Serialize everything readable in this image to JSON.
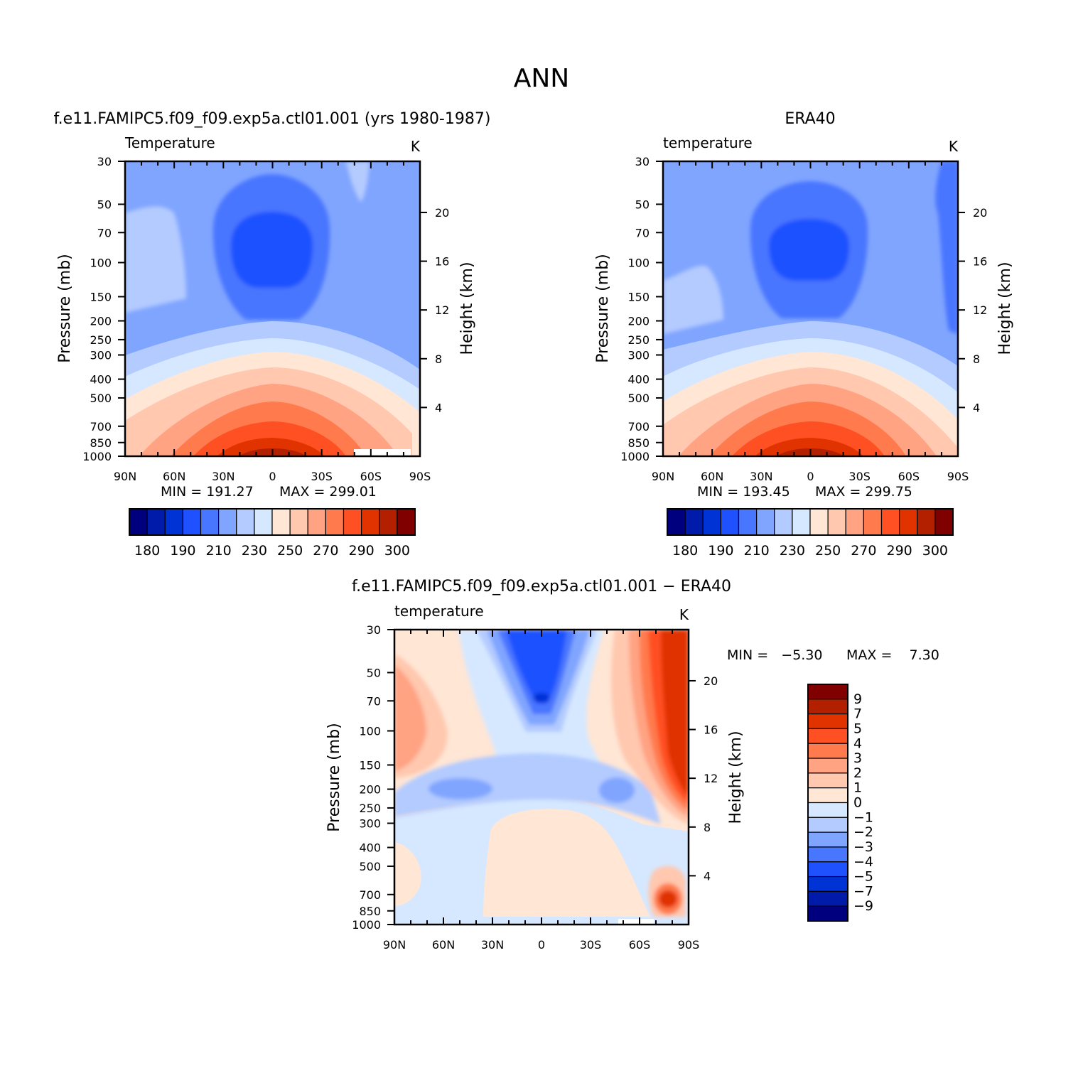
{
  "figure": {
    "title": "ANN"
  },
  "colors": {
    "abs_scale": [
      "#00007f",
      "#001aaa",
      "#0033d5",
      "#1f51ff",
      "#4876ff",
      "#80a5ff",
      "#b3cbff",
      "#d6e8ff",
      "#ffe6d5",
      "#ffc8af",
      "#ffa383",
      "#ff7a4d",
      "#ff5023",
      "#e03300",
      "#b32000",
      "#800000"
    ],
    "diff_scale": [
      "#00007f",
      "#001aaa",
      "#0033d5",
      "#1f51ff",
      "#4876ff",
      "#80a5ff",
      "#b3cbff",
      "#d6e8ff",
      "#ffe6d5",
      "#ffc8af",
      "#ffa383",
      "#ff7a4d",
      "#ff5023",
      "#e03300",
      "#b32000",
      "#800000"
    ]
  },
  "chart_data": [
    {
      "type": "heatmap",
      "title": "f.e11.FAMIPC5.f09_f09.exp5a.ctl01.001 (yrs 1980-1987)",
      "variable": "Temperature",
      "units": "K",
      "xlabel": "",
      "ylabel": "Pressure (mb)",
      "ylabel_right": "Height (km)",
      "xticks": [
        "90N",
        "60N",
        "30N",
        "0",
        "30S",
        "60S",
        "90S"
      ],
      "yticks": [
        30,
        50,
        70,
        100,
        150,
        200,
        250,
        300,
        400,
        500,
        700,
        850,
        1000
      ],
      "yticks_right": [
        4,
        8,
        12,
        16,
        20
      ],
      "levels": [
        180,
        185,
        190,
        200,
        210,
        220,
        230,
        240,
        250,
        260,
        270,
        280,
        290,
        295,
        300
      ],
      "colorbar_labels": [
        "180",
        "190",
        "210",
        "230",
        "250",
        "270",
        "290",
        "300"
      ],
      "min_text": "MIN = 191.27",
      "max_text": "MAX = 299.01",
      "min": 191.27,
      "max": 299.01
    },
    {
      "type": "heatmap",
      "title": "ERA40",
      "variable": "temperature",
      "units": "K",
      "xlabel": "",
      "ylabel": "Pressure (mb)",
      "ylabel_right": "Height (km)",
      "xticks": [
        "90N",
        "60N",
        "30N",
        "0",
        "30S",
        "60S",
        "90S"
      ],
      "yticks": [
        30,
        50,
        70,
        100,
        150,
        200,
        250,
        300,
        400,
        500,
        700,
        850,
        1000
      ],
      "yticks_right": [
        4,
        8,
        12,
        16,
        20
      ],
      "levels": [
        180,
        185,
        190,
        200,
        210,
        220,
        230,
        240,
        250,
        260,
        270,
        280,
        290,
        295,
        300
      ],
      "colorbar_labels": [
        "180",
        "190",
        "210",
        "230",
        "250",
        "270",
        "290",
        "300"
      ],
      "min_text": "MIN = 193.45",
      "max_text": "MAX = 299.75",
      "min": 193.45,
      "max": 299.75
    },
    {
      "type": "heatmap",
      "title": "f.e11.FAMIPC5.f09_f09.exp5a.ctl01.001 − ERA40",
      "variable": "temperature",
      "units": "K",
      "xlabel": "",
      "ylabel": "Pressure (mb)",
      "ylabel_right": "Height (km)",
      "xticks": [
        "90N",
        "60N",
        "30N",
        "0",
        "30S",
        "60S",
        "90S"
      ],
      "yticks": [
        30,
        50,
        70,
        100,
        150,
        200,
        250,
        300,
        400,
        500,
        700,
        850,
        1000
      ],
      "yticks_right": [
        4,
        8,
        12,
        16,
        20
      ],
      "levels": [
        -9,
        -7,
        -5,
        -4,
        -3,
        -2,
        -1,
        0,
        1,
        2,
        3,
        4,
        5,
        7,
        9
      ],
      "colorbar_labels": [
        "9",
        "7",
        "5",
        "4",
        "3",
        "2",
        "1",
        "0",
        "−1",
        "−2",
        "−3",
        "−4",
        "−5",
        "−7",
        "−9"
      ],
      "min_text": "MIN =   −5.30",
      "max_text": "MAX =    7.30",
      "min": -5.3,
      "max": 7.3
    }
  ]
}
